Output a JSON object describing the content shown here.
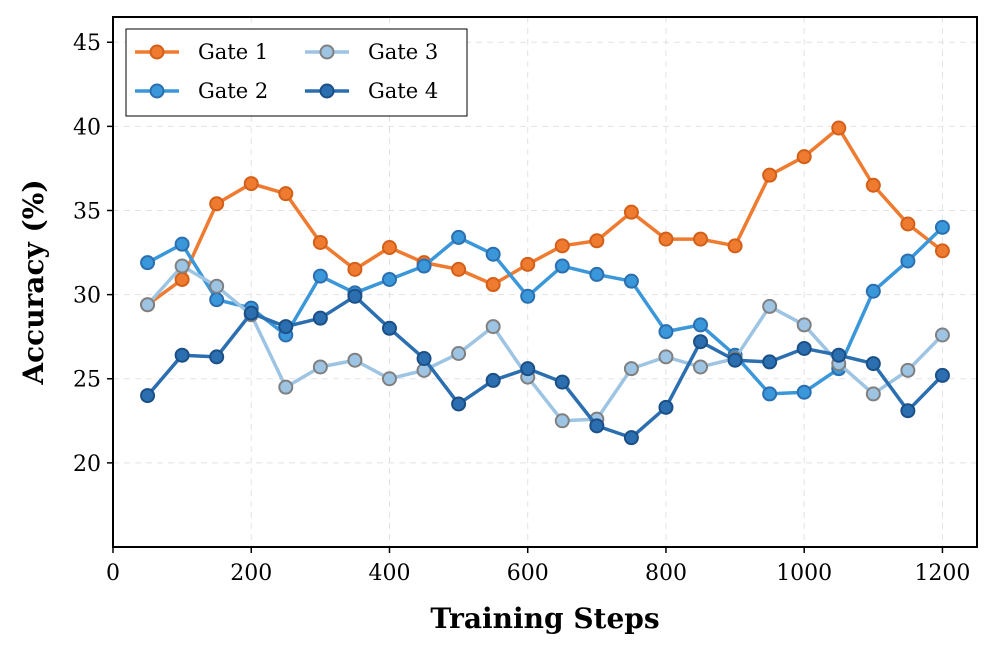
{
  "chart_data": {
    "type": "line",
    "title": "",
    "xlabel": "Training Steps",
    "ylabel": "Accuracy (%)",
    "xlim": [
      0,
      1250
    ],
    "ylim": [
      15,
      46.5
    ],
    "xticks": [
      0,
      200,
      400,
      600,
      800,
      1000,
      1200
    ],
    "yticks": [
      20,
      25,
      30,
      35,
      40,
      45
    ],
    "grid": true,
    "legend_position": "top-left",
    "x": [
      50,
      100,
      150,
      200,
      250,
      300,
      350,
      400,
      450,
      500,
      550,
      600,
      650,
      700,
      750,
      800,
      850,
      900,
      950,
      1000,
      1050,
      1100,
      1150,
      1200
    ],
    "series": [
      {
        "name": "Gate 1",
        "color": "#ef7b31",
        "edge": "#d45f18",
        "values": [
          29.4,
          30.9,
          35.4,
          36.6,
          36.0,
          33.1,
          31.5,
          32.8,
          31.9,
          31.5,
          30.6,
          31.8,
          32.9,
          33.2,
          34.9,
          33.3,
          33.3,
          32.9,
          37.1,
          38.2,
          39.9,
          36.5,
          34.2,
          32.6
        ]
      },
      {
        "name": "Gate 2",
        "color": "#3a97d9",
        "edge": "#2b6fb0",
        "values": [
          31.9,
          33.0,
          29.7,
          29.2,
          27.6,
          31.1,
          30.1,
          30.9,
          31.7,
          33.4,
          32.4,
          29.9,
          31.7,
          31.2,
          30.8,
          27.8,
          28.2,
          26.4,
          24.1,
          24.2,
          25.6,
          30.2,
          32.0,
          34.0
        ]
      },
      {
        "name": "Gate 3",
        "color": "#9ec4e4",
        "edge": "#808080",
        "values": [
          29.4,
          31.7,
          30.5,
          28.8,
          24.5,
          25.7,
          26.1,
          25.0,
          25.5,
          26.5,
          28.1,
          25.1,
          22.5,
          22.6,
          25.6,
          26.3,
          25.7,
          26.2,
          29.3,
          28.2,
          25.9,
          24.1,
          25.5,
          27.6
        ]
      },
      {
        "name": "Gate 4",
        "color": "#2b6fb0",
        "edge": "#1c4f86",
        "values": [
          24.0,
          26.4,
          26.3,
          28.9,
          28.1,
          28.6,
          29.9,
          28.0,
          26.2,
          23.5,
          24.9,
          25.6,
          24.8,
          22.2,
          21.5,
          23.3,
          27.2,
          26.1,
          26.0,
          26.8,
          26.4,
          25.9,
          23.1,
          25.2
        ]
      }
    ]
  }
}
